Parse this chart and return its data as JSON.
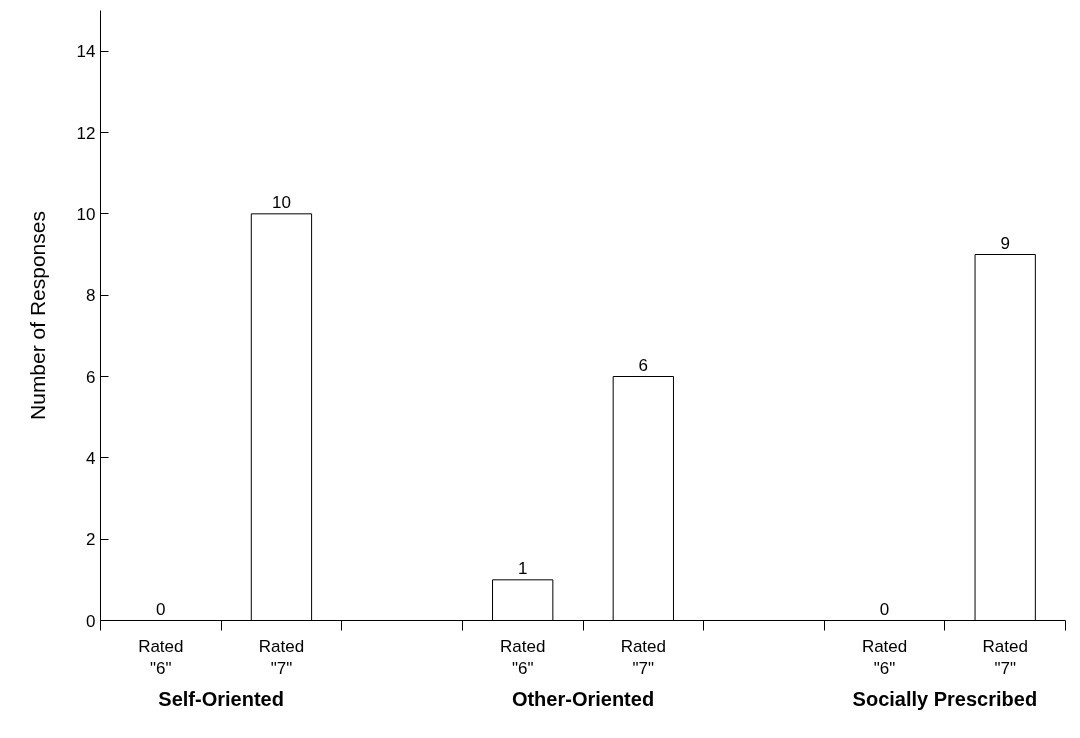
{
  "chart_data": {
    "type": "bar",
    "ylabel": "Number of Responses",
    "categories": [
      "Rated\n\"6\"",
      "Rated\n\"7\"",
      null,
      "Rated\n\"6\"",
      "Rated\n\"7\"",
      null,
      "Rated\n\"6\"",
      "Rated\n\"7\""
    ],
    "values": [
      0,
      10,
      null,
      1,
      6,
      null,
      0,
      9
    ],
    "color": "#ffffff",
    "ylim": [
      0,
      15
    ],
    "yticks": [
      0,
      2,
      4,
      6,
      8,
      10,
      12,
      14
    ],
    "data_labels": true,
    "grid": false,
    "annotations": [
      "Self-Oriented",
      "Other-Oriented",
      "Socially Prescribed"
    ]
  }
}
